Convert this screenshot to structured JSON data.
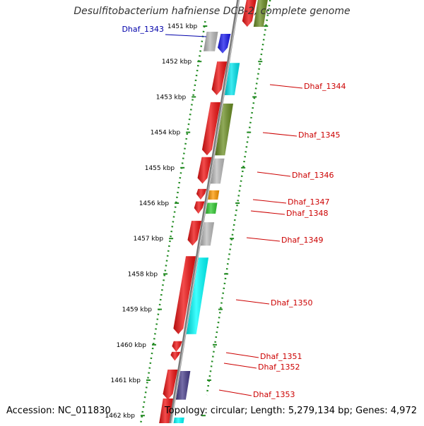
{
  "title": "Desulfitobacterium hafniense DCB-2, complete genome",
  "accession": "Accession: NC_011830",
  "summary": "Topology: circular; Length: 5,279,134 bp; Genes: 4,972",
  "ticks": [
    "1451 kbp",
    "1452 kbp",
    "1453 kbp",
    "1454 kbp",
    "1455 kbp",
    "1456 kbp",
    "1457 kbp",
    "1458 kbp",
    "1459 kbp",
    "1460 kbp",
    "1461 kbp",
    "1462 kbp"
  ],
  "genes": [
    {
      "label": "Dhaf_1343",
      "color": "#0000aa",
      "fill": "#1a1aee",
      "strand": "forward",
      "kbp_start": 1451.1,
      "kbp_end": 1451.65
    },
    {
      "label": "Dhaf_1344",
      "color": "#cc0000",
      "fill": "#00e5ee",
      "strand": "forward",
      "kbp_start": 1452.0,
      "kbp_end": 1452.95
    },
    {
      "label": "Dhaf_1345",
      "color": "#cc0000",
      "fill": "#6b8e23",
      "strand": "forward",
      "kbp_start": 1453.15,
      "kbp_end": 1454.65
    },
    {
      "label": "Dhaf_1346",
      "color": "#cc0000",
      "fill": "#bdbdbd",
      "strand": "forward",
      "kbp_start": 1454.7,
      "kbp_end": 1455.45
    },
    {
      "label": "Dhaf_1347",
      "color": "#cc0000",
      "fill": "#ff9900",
      "strand": "forward",
      "kbp_start": 1455.6,
      "kbp_end": 1455.9
    },
    {
      "label": "Dhaf_1348",
      "color": "#cc0000",
      "fill": "#33cc33",
      "strand": "forward",
      "kbp_start": 1455.95,
      "kbp_end": 1456.3
    },
    {
      "label": "Dhaf_1349",
      "color": "#cc0000",
      "fill": "#bdbdbd",
      "strand": "forward",
      "kbp_start": 1456.5,
      "kbp_end": 1457.2
    },
    {
      "label": "Dhaf_1350",
      "color": "#cc0000",
      "fill": "#00ffff",
      "strand": "forward",
      "kbp_start": 1457.5,
      "kbp_end": 1459.7
    },
    {
      "label": "Dhaf_1351",
      "color": "#cc0000",
      "fill": "#ff0000",
      "strand": "forward",
      "kbp_start": 1459.9,
      "kbp_end": 1460.2
    },
    {
      "label": "Dhaf_1352",
      "color": "#cc0000",
      "fill": "#ff0000",
      "strand": "forward",
      "kbp_start": 1460.2,
      "kbp_end": 1460.45
    },
    {
      "label": "Dhaf_1353",
      "color": "#cc0000",
      "fill": "#483d8b",
      "strand": "forward",
      "kbp_start": 1460.7,
      "kbp_end": 1461.55
    }
  ]
}
